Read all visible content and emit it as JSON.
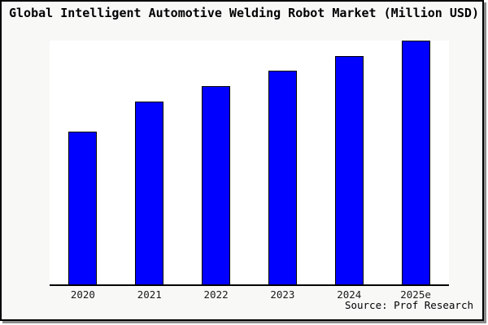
{
  "title": "Global Intelligent Automotive Welding Robot Market (Million USD)",
  "source_note": "Source: Prof Research",
  "colors": {
    "bar_fill": "#0000ff",
    "bar_border": "#000000",
    "plot_background": "#ffffff",
    "figure_background": "#f8f8f7",
    "frame_border": "#000000",
    "frame_shadow": "#8c8c8c"
  },
  "chart_data": {
    "type": "bar",
    "title": "Global Intelligent Automotive Welding Robot Market (Million USD)",
    "categories": [
      "2020",
      "2021",
      "2022",
      "2023",
      "2024",
      "2025e"
    ],
    "values": [
      62.7,
      75.0,
      81.3,
      87.7,
      93.7,
      100.0
    ],
    "value_scale": "relative bar height, percent of tallest bar (no y-axis ticks or value labels shown in chart)",
    "xlabel": "",
    "ylabel": "",
    "ylim": [
      0,
      100
    ],
    "grid": false,
    "legend": false,
    "source": "Source: Prof Research"
  }
}
